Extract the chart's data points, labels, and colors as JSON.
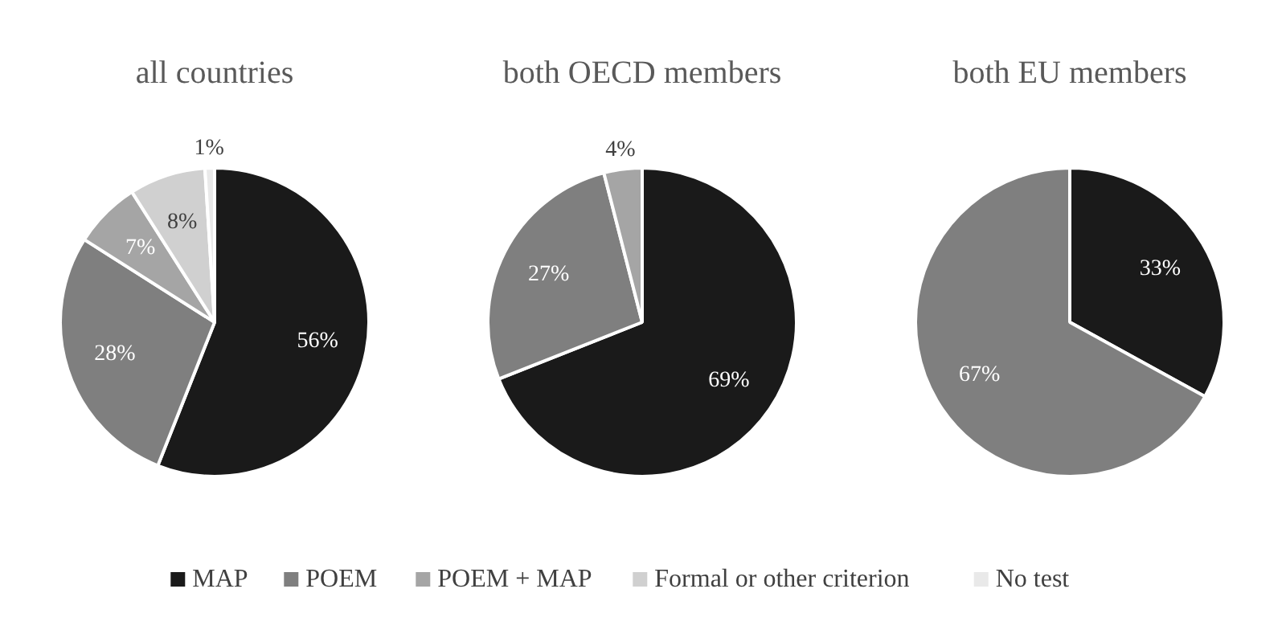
{
  "chart_data": [
    {
      "type": "pie",
      "title": "all countries",
      "categories": [
        "MAP",
        "POEM",
        "POEM + MAP",
        "Formal or other criterion",
        "No test"
      ],
      "values": [
        56,
        28,
        7,
        8,
        1
      ],
      "value_labels": [
        "56%",
        "28%",
        "7%",
        "8%",
        "1%"
      ],
      "colors": [
        "#1a1a1a",
        "#7f7f7f",
        "#a5a5a5",
        "#d0d0d0",
        "#e9e9e9"
      ],
      "legend": "bottom"
    },
    {
      "type": "pie",
      "title": "both OECD members",
      "categories": [
        null,
        null,
        null
      ],
      "values": [
        69,
        27,
        4
      ],
      "value_labels": [
        "69%",
        "27%",
        "4%"
      ],
      "colors": [
        "#1a1a1a",
        "#7f7f7f",
        "#a5a5a5"
      ]
    },
    {
      "type": "pie",
      "title": "both EU members",
      "categories": [
        null,
        null
      ],
      "values": [
        33,
        67
      ],
      "value_labels": [
        "33%",
        "67%"
      ],
      "colors": [
        "#1a1a1a",
        "#7f7f7f"
      ]
    }
  ]
}
